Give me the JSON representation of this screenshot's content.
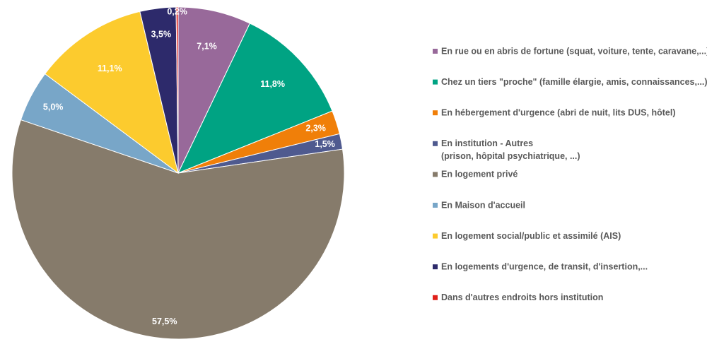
{
  "chart_data": {
    "type": "pie",
    "categories": [
      "En rue ou en abris de fortune  (squat, voiture, tente, caravane,...)",
      "Chez un tiers \"proche\" (famille élargie, amis, connaissances,...)",
      "En hébergement d'urgence (abri de nuit, lits DUS, hôtel)",
      "En institution - Autres",
      "En logement privé",
      "En Maison d'accueil",
      "En logement social/public et assimilé (AIS)",
      "En logements d'urgence, de transit, d'insertion,...",
      "Dans d'autres endroits hors institution"
    ],
    "values": [
      7.1,
      11.8,
      2.3,
      1.5,
      57.5,
      5.0,
      11.1,
      3.5,
      0.2
    ],
    "data_labels": [
      "7,1%",
      "11,8%",
      "2,3%",
      "1,5%",
      "57,5%",
      "5,0%",
      "11,1%",
      "3,5%",
      "0,2%"
    ],
    "legend_lines": [
      [
        "En rue ou en abris de fortune  (squat, voiture, tente, caravane,...)"
      ],
      [
        "Chez un tiers \"proche\" (famille élargie, amis, connaissances,...)"
      ],
      [
        "En hébergement d'urgence (abri de nuit, lits DUS, hôtel)"
      ],
      [
        "En institution - Autres",
        "(prison, hôpital psychiatrique, ...)"
      ],
      [
        "En logement privé"
      ],
      [
        "En Maison d'accueil"
      ],
      [
        "En logement social/public et assimilé (AIS)"
      ],
      [
        "En logements d'urgence, de transit, d'insertion,..."
      ],
      [
        "Dans d'autres endroits hors institution"
      ]
    ],
    "colors": [
      "#98699a",
      "#00a383",
      "#f07f09",
      "#4f5a8f",
      "#867b6b",
      "#78a6c8",
      "#fccb2e",
      "#2d2a6b",
      "#e0201a"
    ],
    "title": "",
    "legend_position": "right",
    "start_angle": "12 o'clock, clockwise"
  }
}
